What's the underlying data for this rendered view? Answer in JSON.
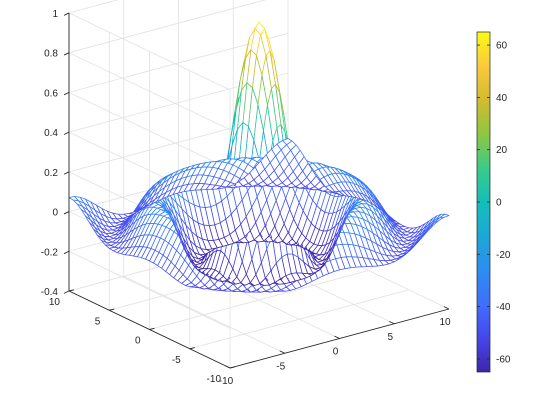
{
  "chart_data": {
    "type": "mesh",
    "function": "sinc: sin(r)/r with r = sqrt(x^2 + y^2)",
    "x": {
      "range": [
        -10,
        10
      ],
      "ticks": [
        "-10",
        "-5",
        "0",
        "5",
        "10"
      ]
    },
    "y": {
      "range": [
        -10,
        10
      ],
      "ticks": [
        "-10",
        "-5",
        "0",
        "5",
        "10"
      ]
    },
    "z": {
      "range": [
        -0.4,
        1
      ],
      "ticks": [
        "-0.4",
        "-0.2",
        "0",
        "0.2",
        "0.4",
        "0.6",
        "0.8",
        "1"
      ]
    },
    "grid": true,
    "view": "default 3-D view (azimuth -37.5, elevation 30)",
    "colormap": "parula",
    "colorbar": {
      "position": "right",
      "range": [
        -65,
        65
      ],
      "ticks": [
        "-60",
        "-40",
        "-20",
        "0",
        "20",
        "40",
        "60"
      ]
    }
  },
  "colors": {
    "axis": "#262626",
    "grid": "#e1e1e1",
    "parula_low": "#3e26a8",
    "parula_mid": "#13bfb8",
    "parula_high": "#f9fb15"
  }
}
